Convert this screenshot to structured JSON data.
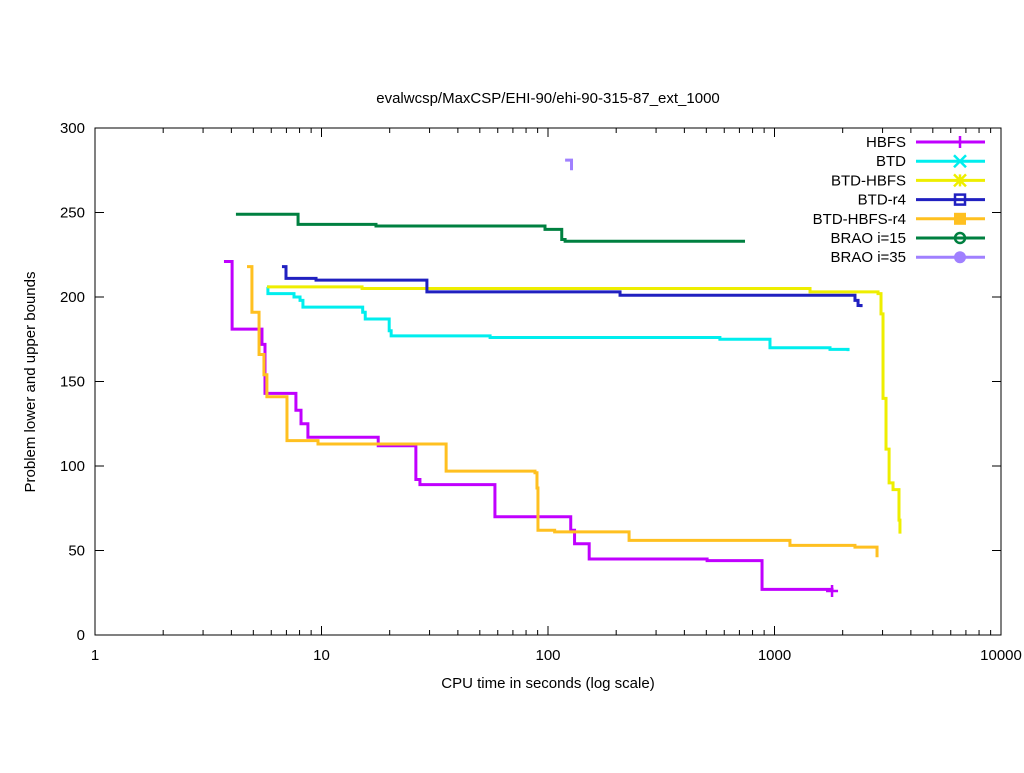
{
  "chart_data": {
    "type": "line",
    "title": "evalwcsp/MaxCSP/EHI-90/ehi-90-315-87_ext_1000",
    "xlabel": "CPU time in seconds (log scale)",
    "ylabel": "Problem lower and upper bounds",
    "xscale": "log",
    "xlim": [
      1,
      10000
    ],
    "ylim": [
      0,
      300
    ],
    "xticks": [
      "1",
      "10",
      "100",
      "1000",
      "10000"
    ],
    "xtick_values": [
      1,
      10,
      100,
      1000,
      10000
    ],
    "yticks": [
      "0",
      "50",
      "100",
      "150",
      "200",
      "250",
      "300"
    ],
    "ytick_values": [
      0,
      50,
      100,
      150,
      200,
      250,
      300
    ],
    "grid": false,
    "legend_position": "top-right",
    "step": true,
    "series": [
      {
        "name": "HBFS",
        "color": "#c000ff",
        "marker": "plus",
        "points": [
          [
            3.71,
            221
          ],
          [
            4.03,
            181
          ],
          [
            5.46,
            172
          ],
          [
            5.63,
            143
          ],
          [
            7.71,
            133
          ],
          [
            8.12,
            125
          ],
          [
            8.71,
            117
          ],
          [
            17.8,
            112
          ],
          [
            26.1,
            92
          ],
          [
            27.2,
            89
          ],
          [
            58.3,
            70
          ],
          [
            126,
            62
          ],
          [
            131,
            54
          ],
          [
            152,
            45
          ],
          [
            504,
            44
          ],
          [
            881,
            27
          ],
          [
            1795,
            26
          ]
        ]
      },
      {
        "name": "BTD",
        "color": "#00eeee",
        "marker": "x",
        "points": [
          [
            5.75,
            206
          ],
          [
            5.8,
            202
          ],
          [
            7.56,
            200
          ],
          [
            8.04,
            198
          ],
          [
            8.28,
            194
          ],
          [
            15.2,
            191
          ],
          [
            15.6,
            187
          ],
          [
            19.9,
            180
          ],
          [
            20.3,
            177
          ],
          [
            55.5,
            176
          ],
          [
            574,
            175
          ],
          [
            955,
            170
          ],
          [
            1758,
            169
          ],
          [
            2112,
            168
          ]
        ]
      },
      {
        "name": "BTD-HBFS",
        "color": "#eeee00",
        "marker": "star",
        "points": [
          [
            5.75,
            206
          ],
          [
            15.1,
            205
          ],
          [
            1435,
            203
          ],
          [
            2865,
            202
          ],
          [
            2953,
            190
          ],
          [
            3014,
            140
          ],
          [
            3107,
            110
          ],
          [
            3206,
            90
          ],
          [
            3337,
            86
          ],
          [
            3545,
            68
          ],
          [
            3580,
            60
          ]
        ]
      },
      {
        "name": "BTD-r4",
        "color": "#2020c0",
        "marker": "box",
        "points": [
          [
            6.69,
            218
          ],
          [
            6.97,
            211
          ],
          [
            9.46,
            210
          ],
          [
            29.2,
            203
          ],
          [
            208,
            201
          ],
          [
            2266,
            198
          ],
          [
            2338,
            195
          ],
          [
            2411,
            194
          ]
        ]
      },
      {
        "name": "BTD-HBFS-r4",
        "color": "#ffc020",
        "marker": "filled-box",
        "points": [
          [
            4.69,
            218
          ],
          [
            4.93,
            191
          ],
          [
            5.3,
            166
          ],
          [
            5.57,
            154
          ],
          [
            5.74,
            141
          ],
          [
            7.04,
            115
          ],
          [
            9.65,
            113
          ],
          [
            35.5,
            97
          ],
          [
            87.6,
            96
          ],
          [
            89.4,
            87
          ],
          [
            90.3,
            62
          ],
          [
            107,
            61
          ],
          [
            228,
            56
          ],
          [
            1170,
            53
          ],
          [
            2266,
            52
          ],
          [
            2836,
            46
          ]
        ]
      },
      {
        "name": "BRAO i=15",
        "color": "#008040",
        "marker": "circle",
        "points": [
          [
            4.19,
            249
          ],
          [
            7.88,
            243
          ],
          [
            17.4,
            242
          ],
          [
            97,
            240
          ],
          [
            115,
            234
          ],
          [
            119,
            233
          ],
          [
            741,
            233
          ]
        ]
      },
      {
        "name": "BRAO i=35",
        "color": "#a080ff",
        "marker": "filled-circle",
        "points": [
          [
            119,
            281
          ],
          [
            127,
            275
          ]
        ]
      }
    ]
  }
}
